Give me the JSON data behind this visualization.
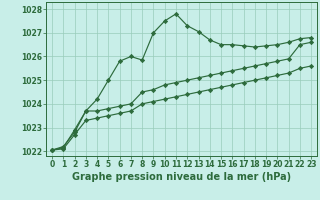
{
  "title": "Graphe pression niveau de la mer (hPa)",
  "bg_color": "#c8eee8",
  "grid_color": "#99ccbb",
  "line_color": "#2d6b3c",
  "xlim": [
    -0.5,
    23.5
  ],
  "ylim": [
    1021.8,
    1028.3
  ],
  "yticks": [
    1022,
    1023,
    1024,
    1025,
    1026,
    1027,
    1028
  ],
  "xticks": [
    0,
    1,
    2,
    3,
    4,
    5,
    6,
    7,
    8,
    9,
    10,
    11,
    12,
    13,
    14,
    15,
    16,
    17,
    18,
    19,
    20,
    21,
    22,
    23
  ],
  "series1": [
    1022.05,
    1022.2,
    1022.8,
    1023.7,
    1024.2,
    1025.0,
    1025.8,
    1026.0,
    1025.85,
    1027.0,
    1027.5,
    1027.8,
    1027.3,
    1027.05,
    1026.7,
    1026.5,
    1026.5,
    1026.45,
    1026.4,
    1026.45,
    1026.5,
    1026.6,
    1026.75,
    1026.8
  ],
  "series2": [
    1022.05,
    1022.15,
    1022.9,
    1023.7,
    1023.7,
    1023.8,
    1023.9,
    1024.0,
    1024.5,
    1024.6,
    1024.8,
    1024.9,
    1025.0,
    1025.1,
    1025.2,
    1025.3,
    1025.4,
    1025.5,
    1025.6,
    1025.7,
    1025.8,
    1025.9,
    1026.5,
    1026.6
  ],
  "series3": [
    1022.05,
    1022.1,
    1022.7,
    1023.3,
    1023.4,
    1023.5,
    1023.6,
    1023.7,
    1024.0,
    1024.1,
    1024.2,
    1024.3,
    1024.4,
    1024.5,
    1024.6,
    1024.7,
    1024.8,
    1024.9,
    1025.0,
    1025.1,
    1025.2,
    1025.3,
    1025.5,
    1025.6
  ],
  "tick_fontsize": 5.5,
  "label_fontsize": 7.0
}
